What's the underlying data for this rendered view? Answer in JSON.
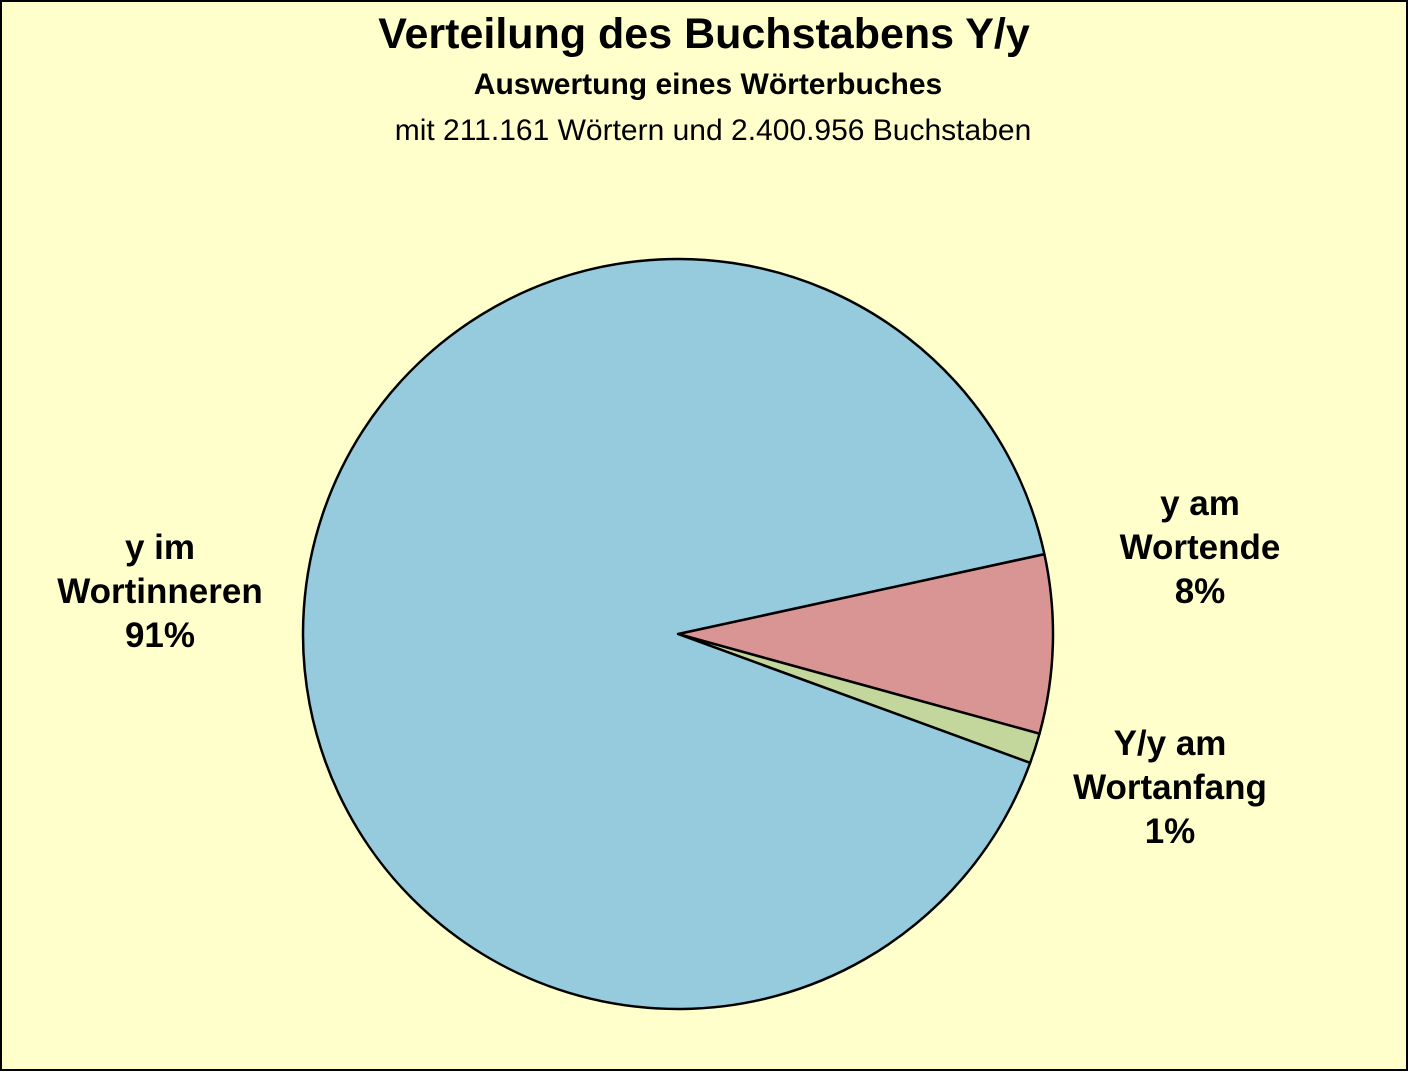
{
  "chart_data": {
    "type": "pie",
    "title": "Verteilung des Buchstabens Y/y",
    "subtitle": "Auswertung eines Wörterbuches",
    "subtitle2": "mit 211.161 Wörtern und 2.400.956 Buchstaben",
    "slices": [
      {
        "label_lines": [
          "y im",
          "Wortinneren"
        ],
        "pct_label": "91%",
        "value": 91.0,
        "color": "#96cadd"
      },
      {
        "label_lines": [
          "y am",
          "Wortende"
        ],
        "pct_label": "8%",
        "value": 7.7,
        "color": "#d99594"
      },
      {
        "label_lines": [
          "Y/y am",
          "Wortanfang"
        ],
        "pct_label": "1%",
        "value": 1.3,
        "color": "#c3d69b"
      }
    ]
  },
  "colors": {
    "background": "#ffffcc",
    "outline": "#000000"
  }
}
